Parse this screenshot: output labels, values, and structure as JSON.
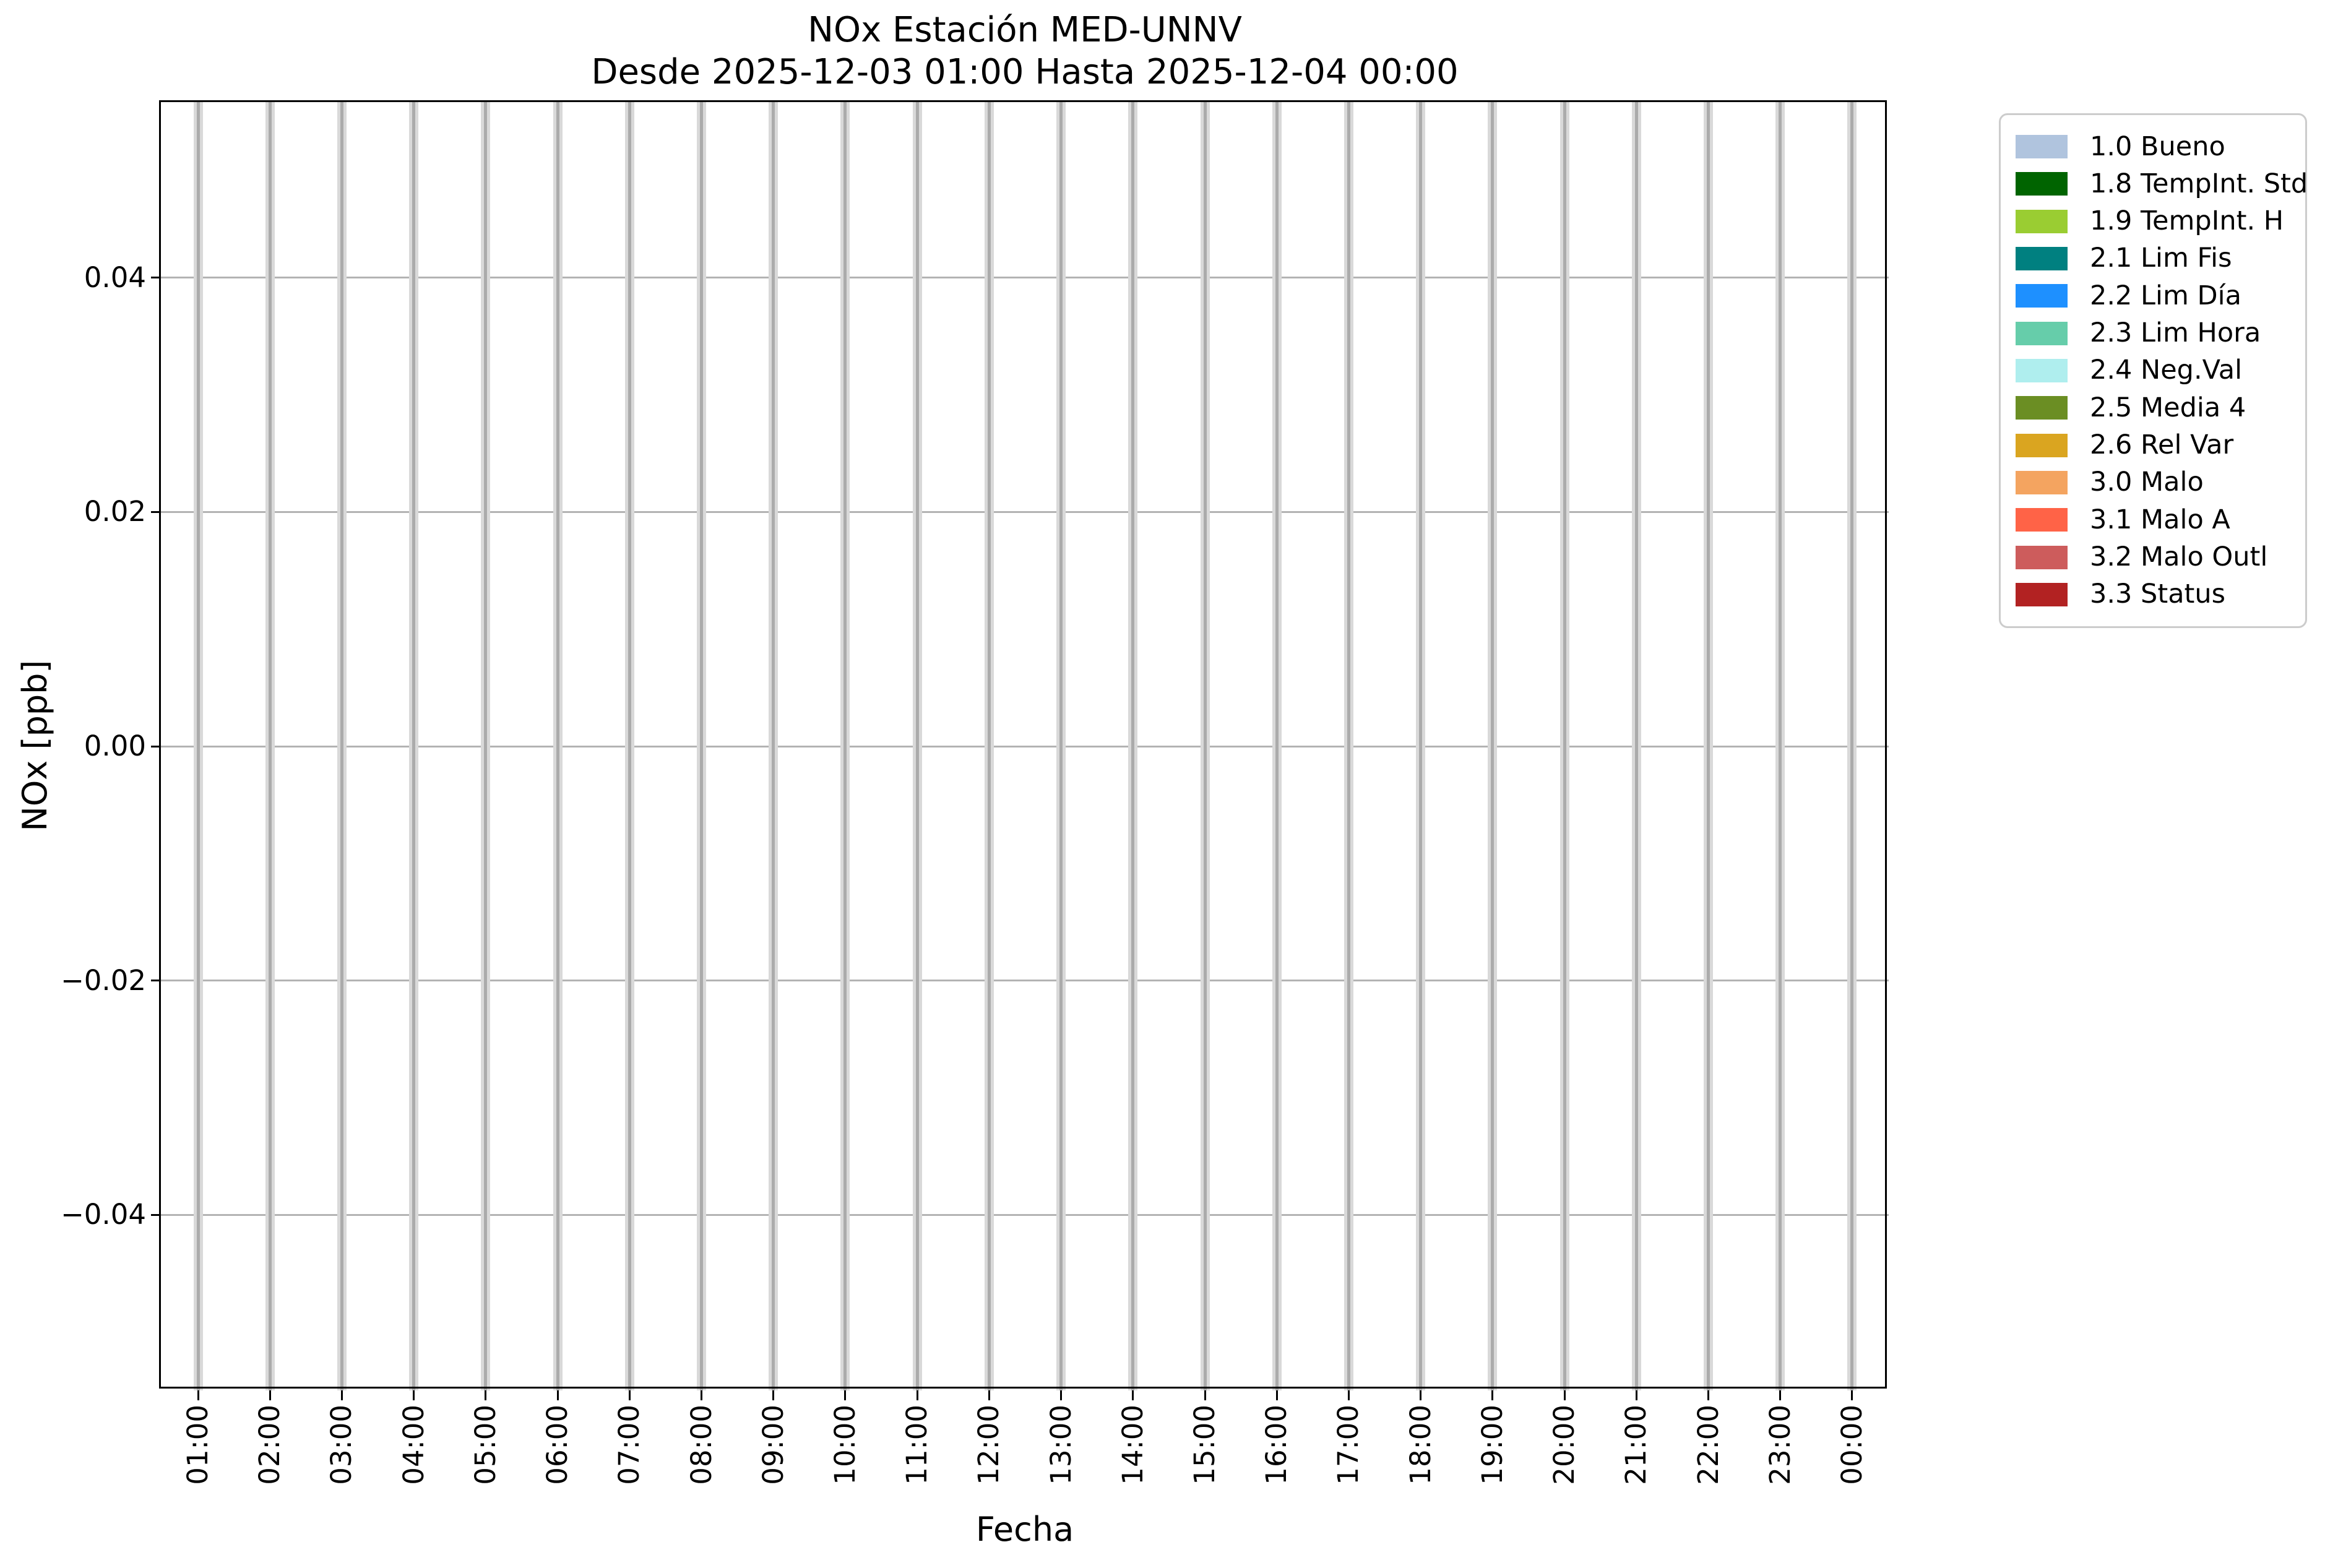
{
  "title": {
    "line1": "NOx Estación MED-UNNV",
    "line2": "Desde 2025-12-03 01:00 Hasta 2025-12-04 00:00"
  },
  "y_axis": {
    "label": "NOx [ppb]",
    "ticks": [
      "0.04",
      "0.02",
      "0.00",
      "−0.02",
      "−0.04"
    ]
  },
  "x_axis": {
    "label": "Fecha",
    "ticks": [
      "01:00",
      "02:00",
      "03:00",
      "04:00",
      "05:00",
      "06:00",
      "07:00",
      "08:00",
      "09:00",
      "10:00",
      "11:00",
      "12:00",
      "13:00",
      "14:00",
      "15:00",
      "16:00",
      "17:00",
      "18:00",
      "19:00",
      "20:00",
      "21:00",
      "22:00",
      "23:00",
      "00:00"
    ]
  },
  "legend": {
    "items": [
      {
        "label": "1.0 Bueno",
        "color": "#b0c4de"
      },
      {
        "label": "1.8 TempInt. Std",
        "color": "#006400"
      },
      {
        "label": "1.9 TempInt. H",
        "color": "#9acd32"
      },
      {
        "label": "2.1 Lim Fis",
        "color": "#008080"
      },
      {
        "label": "2.2 Lim Día",
        "color": "#1e90ff"
      },
      {
        "label": "2.3 Lim Hora",
        "color": "#66cdaa"
      },
      {
        "label": "2.4 Neg.Val",
        "color": "#afeeee"
      },
      {
        "label": "2.5 Media 4",
        "color": "#6b8e23"
      },
      {
        "label": "2.6 Rel Var",
        "color": "#daa520"
      },
      {
        "label": "3.0 Malo",
        "color": "#f4a460"
      },
      {
        "label": "3.1 Malo A",
        "color": "#ff6347"
      },
      {
        "label": "3.2 Malo Outl",
        "color": "#cd5c5c"
      },
      {
        "label": "3.3 Status",
        "color": "#b22222"
      }
    ]
  },
  "style_colors": {
    "grid_horizontal": "#b3b3b3",
    "hour_band_light": "#d9d9d9",
    "hour_band_core": "#ababab",
    "spine": "#000000",
    "legend_border": "#cccccc"
  },
  "chart_data": {
    "type": "bar",
    "title": "NOx Estación MED-UNNV",
    "subtitle": "Desde 2025-12-03 01:00 Hasta 2025-12-04 00:00",
    "xlabel": "Fecha",
    "ylabel": "NOx [ppb]",
    "categories": [
      "01:00",
      "02:00",
      "03:00",
      "04:00",
      "05:00",
      "06:00",
      "07:00",
      "08:00",
      "09:00",
      "10:00",
      "11:00",
      "12:00",
      "13:00",
      "14:00",
      "15:00",
      "16:00",
      "17:00",
      "18:00",
      "19:00",
      "20:00",
      "21:00",
      "22:00",
      "23:00",
      "00:00"
    ],
    "y_ticks": [
      0.04,
      0.02,
      0.0,
      -0.02,
      -0.04
    ],
    "ylim": [
      -0.055,
      0.055
    ],
    "grid": true,
    "legend_position": "outside upper right",
    "x_tick_rotation_deg": 90,
    "series": [
      {
        "name": "1.0 Bueno",
        "color": "#b0c4de",
        "values": []
      },
      {
        "name": "1.8 TempInt. Std",
        "color": "#006400",
        "values": []
      },
      {
        "name": "1.9 TempInt. H",
        "color": "#9acd32",
        "values": []
      },
      {
        "name": "2.1 Lim Fis",
        "color": "#008080",
        "values": []
      },
      {
        "name": "2.2 Lim Día",
        "color": "#1e90ff",
        "values": []
      },
      {
        "name": "2.3 Lim Hora",
        "color": "#66cdaa",
        "values": []
      },
      {
        "name": "2.4 Neg.Val",
        "color": "#afeeee",
        "values": []
      },
      {
        "name": "2.5 Media 4",
        "color": "#6b8e23",
        "values": []
      },
      {
        "name": "2.6 Rel Var",
        "color": "#daa520",
        "values": []
      },
      {
        "name": "3.0 Malo",
        "color": "#f4a460",
        "values": []
      },
      {
        "name": "3.1 Malo A",
        "color": "#ff6347",
        "values": []
      },
      {
        "name": "3.2 Malo Outl",
        "color": "#cd5c5c",
        "values": []
      },
      {
        "name": "3.3 Status",
        "color": "#b22222",
        "values": []
      }
    ],
    "note_visible_data": "plot area contains only gridlines; no non-zero bars are rendered"
  }
}
